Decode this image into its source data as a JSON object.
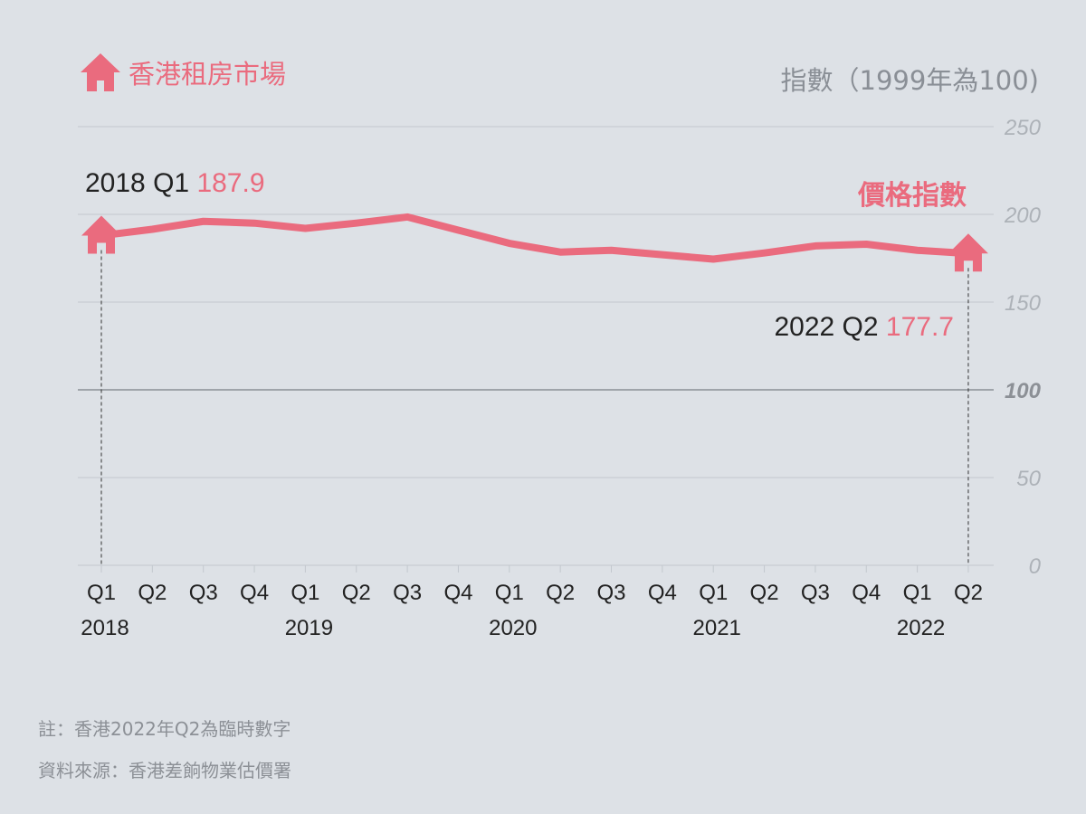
{
  "header": {
    "title": "香港租房市場",
    "unit_label": "指數（1999年為100)"
  },
  "colors": {
    "background": "#dde1e6",
    "accent": "#ea6b7e",
    "grid": "#c3c8ce",
    "baseline": "#9fa4aa",
    "axis_text": "#adb2b8",
    "text": "#222222"
  },
  "chart_data": {
    "type": "line",
    "title": "香港租房市場",
    "ylabel": "指數（1999年為100)",
    "ylim": [
      0,
      250
    ],
    "yticks": [
      0,
      50,
      100,
      150,
      200,
      250
    ],
    "highlight_tick": 100,
    "grid": true,
    "categories": [
      "Q1",
      "Q2",
      "Q3",
      "Q4",
      "Q1",
      "Q2",
      "Q3",
      "Q4",
      "Q1",
      "Q2",
      "Q3",
      "Q4",
      "Q1",
      "Q2",
      "Q3",
      "Q4",
      "Q1",
      "Q2"
    ],
    "years": [
      {
        "label": "2018",
        "index": 0
      },
      {
        "label": "2019",
        "index": 4
      },
      {
        "label": "2020",
        "index": 8
      },
      {
        "label": "2021",
        "index": 12
      },
      {
        "label": "2022",
        "index": 16
      }
    ],
    "series": [
      {
        "name": "價格指數",
        "values": [
          187.9,
          191.5,
          196,
          195,
          192,
          195,
          198.5,
          191,
          183.5,
          178.5,
          179.5,
          177,
          174.5,
          178,
          182,
          183,
          179.5,
          177.7
        ]
      }
    ],
    "annotations": [
      {
        "index": 0,
        "period": "2018 Q1",
        "value": "187.9"
      },
      {
        "index": 17,
        "period": "2022 Q2",
        "value": "177.7"
      }
    ]
  },
  "footer": {
    "note": "註：香港2022年Q2為臨時數字",
    "source": "資料來源：香港差餉物業估價署"
  }
}
